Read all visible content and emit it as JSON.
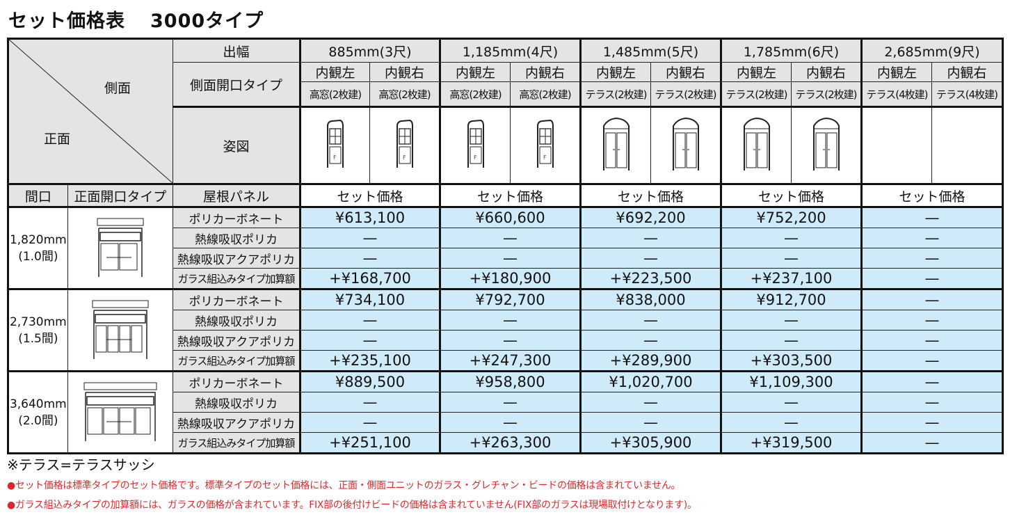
{
  "title": {
    "main": "セット価格表",
    "type": "3000タイプ"
  },
  "corner": {
    "side": "側面",
    "front": "正面"
  },
  "row_labels": {
    "depth": "出幅",
    "side_type": "側面開口タイプ",
    "figure": "姿図",
    "frontage": "間口",
    "front_type": "正面開口タイプ",
    "roof": "屋根パネル"
  },
  "depths": [
    {
      "label": "885mm(3尺)",
      "price_header": "セット価格",
      "sides": [
        {
          "view": "内観左",
          "type": "高窓(2枚建)",
          "figure": "tall-window-f"
        },
        {
          "view": "内観右",
          "type": "高窓(2枚建)",
          "figure": "tall-window-f"
        }
      ]
    },
    {
      "label": "1,185mm(4尺)",
      "price_header": "セット価格",
      "sides": [
        {
          "view": "内観左",
          "type": "高窓(2枚建)",
          "figure": "tall-window-f"
        },
        {
          "view": "内観右",
          "type": "高窓(2枚建)",
          "figure": "tall-window-f"
        }
      ]
    },
    {
      "label": "1,485mm(5尺)",
      "price_header": "セット価格",
      "sides": [
        {
          "view": "内観左",
          "type": "テラス(2枚建)",
          "figure": "terrace"
        },
        {
          "view": "内観右",
          "type": "テラス(2枚建)",
          "figure": "terrace"
        }
      ]
    },
    {
      "label": "1,785mm(6尺)",
      "price_header": "セット価格",
      "sides": [
        {
          "view": "内観左",
          "type": "テラス(2枚建)",
          "figure": "terrace"
        },
        {
          "view": "内観右",
          "type": "テラス(2枚建)",
          "figure": "terrace"
        }
      ]
    },
    {
      "label": "2,685mm(9尺)",
      "price_header": "セット価格",
      "sides": [
        {
          "view": "内観左",
          "type": "テラス(4枚建)",
          "figure": ""
        },
        {
          "view": "内観右",
          "type": "テラス(4枚建)",
          "figure": ""
        }
      ]
    }
  ],
  "groups": [
    {
      "frontage": "1,820mm",
      "ken": "(1.0間)",
      "front_figure": "front-2-doors",
      "rows": [
        {
          "panel": "ポリカーボネート",
          "prices": [
            "¥613,100",
            "¥660,600",
            "¥692,200",
            "¥752,200",
            "—"
          ]
        },
        {
          "panel": "熱線吸収ポリカ",
          "prices": [
            "—",
            "—",
            "—",
            "—",
            "—"
          ]
        },
        {
          "panel": "熱線吸収アクアポリカ",
          "prices": [
            "—",
            "—",
            "—",
            "—",
            "—"
          ]
        },
        {
          "panel": "ガラス組込みタイプ加算額",
          "prices": [
            "+¥168,700",
            "+¥180,900",
            "+¥223,500",
            "+¥237,100",
            "—"
          ]
        }
      ]
    },
    {
      "frontage": "2,730mm",
      "ken": "(1.5間)",
      "front_figure": "front-4-doors",
      "rows": [
        {
          "panel": "ポリカーボネート",
          "prices": [
            "¥734,100",
            "¥792,700",
            "¥838,000",
            "¥912,700",
            "—"
          ]
        },
        {
          "panel": "熱線吸収ポリカ",
          "prices": [
            "—",
            "—",
            "—",
            "—",
            "—"
          ]
        },
        {
          "panel": "熱線吸収アクアポリカ",
          "prices": [
            "—",
            "—",
            "—",
            "—",
            "—"
          ]
        },
        {
          "panel": "ガラス組込みタイプ加算額",
          "prices": [
            "+¥235,100",
            "+¥247,300",
            "+¥289,900",
            "+¥303,500",
            "—"
          ]
        }
      ]
    },
    {
      "frontage": "3,640mm",
      "ken": "(2.0間)",
      "front_figure": "front-4-doors-wide",
      "rows": [
        {
          "panel": "ポリカーボネート",
          "prices": [
            "¥889,500",
            "¥958,800",
            "¥1,020,700",
            "¥1,109,300",
            "—"
          ]
        },
        {
          "panel": "熱線吸収ポリカ",
          "prices": [
            "—",
            "—",
            "—",
            "—",
            "—"
          ]
        },
        {
          "panel": "熱線吸収アクアポリカ",
          "prices": [
            "—",
            "—",
            "—",
            "—",
            "—"
          ]
        },
        {
          "panel": "ガラス組込みタイプ加算額",
          "prices": [
            "+¥251,100",
            "+¥263,300",
            "+¥305,900",
            "+¥319,500",
            "—"
          ]
        }
      ]
    }
  ],
  "notes": {
    "terrace": "※テラス=テラスサッシ",
    "items": [
      "●セット価格は標準タイプのセット価格です。標準タイプのセット価格には、正面・側面ユニットのガラス・グレチャン・ビードの価格は含まれていません。",
      "●ガラス組込みタイプの加算額には、ガラスの価格が含まれています。FIX部の後付けビードの価格は含まれていません(FIX部のガラスは現場取付けとなります)。"
    ]
  },
  "colors": {
    "header_gray": "#e4e4e4",
    "price_blue": "#cfeaf8",
    "note_red": "#e0262b"
  }
}
